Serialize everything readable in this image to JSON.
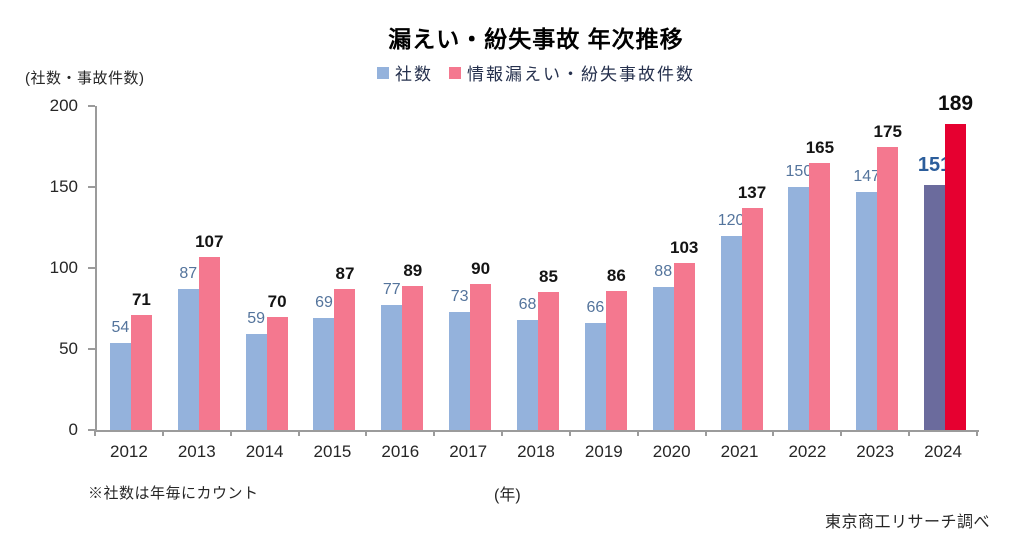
{
  "notes": {
    "footnote": "※社数は年毎にカウント",
    "source": "東京商工リサーチ調べ"
  },
  "chart_data": {
    "type": "bar",
    "title": "漏えい・紛失事故 年次推移",
    "ylabel": "(社数・事故件数)",
    "xlabel": "(年)",
    "categories": [
      "2012",
      "2013",
      "2014",
      "2015",
      "2016",
      "2017",
      "2018",
      "2019",
      "2020",
      "2021",
      "2022",
      "2023",
      "2024"
    ],
    "series": [
      {
        "name": "社数",
        "color": "#94b2dc",
        "label_color": "#54749c",
        "values": [
          54,
          87,
          59,
          69,
          77,
          73,
          68,
          66,
          88,
          120,
          150,
          147,
          151
        ]
      },
      {
        "name": "情報漏えい・紛失事故件数",
        "color": "#f4788f",
        "label_color": "#141414",
        "values": [
          71,
          107,
          70,
          87,
          89,
          90,
          85,
          86,
          103,
          137,
          165,
          175,
          189
        ]
      }
    ],
    "highlight": {
      "category": "2024",
      "index": 12,
      "bar_colors": [
        "#6b6b9d",
        "#e60030"
      ],
      "label_colors": [
        "#2b5d9b",
        "#0d0d0d"
      ]
    },
    "ylim": [
      0,
      200
    ],
    "yticks": [
      0,
      50,
      100,
      150,
      200
    ],
    "grid": false,
    "legend_position": "top",
    "axis_color": "#9b9b9b"
  }
}
